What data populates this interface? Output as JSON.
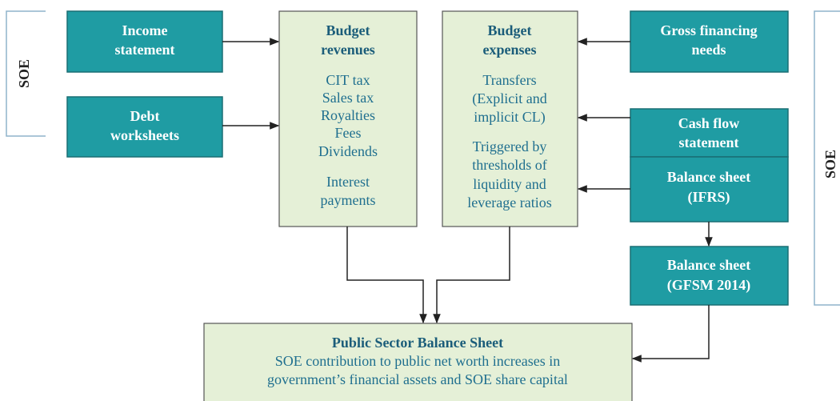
{
  "side_labels": [
    "SOE",
    "SOE"
  ],
  "left_sources": [
    {
      "lines": [
        "Income",
        "statement"
      ]
    },
    {
      "lines": [
        "Debt",
        "worksheets"
      ]
    }
  ],
  "right_sources": [
    {
      "lines": [
        "Gross financing",
        "needs"
      ]
    },
    {
      "lines": [
        "Cash flow",
        "statement"
      ]
    },
    {
      "lines": [
        "Balance sheet",
        "(IFRS)"
      ]
    },
    {
      "lines": [
        "Balance sheet",
        "(GFSM 2014)"
      ]
    }
  ],
  "budget_revenues": {
    "title": [
      "Budget",
      "revenues"
    ],
    "items": [
      "CIT tax",
      "Sales tax",
      "Royalties",
      "Fees",
      "Dividends",
      "Interest",
      "payments"
    ]
  },
  "budget_expenses": {
    "title": [
      "Budget",
      "expenses"
    ],
    "items": [
      "Transfers",
      "(Explicit and",
      "implicit CL)",
      "Triggered by",
      "thresholds of",
      "liquidity and",
      "leverage ratios"
    ]
  },
  "public_sector": {
    "title": "Public Sector Balance Sheet",
    "lines": [
      "SOE contribution to public net worth increases in",
      "government’s financial assets and SOE share capital"
    ]
  }
}
